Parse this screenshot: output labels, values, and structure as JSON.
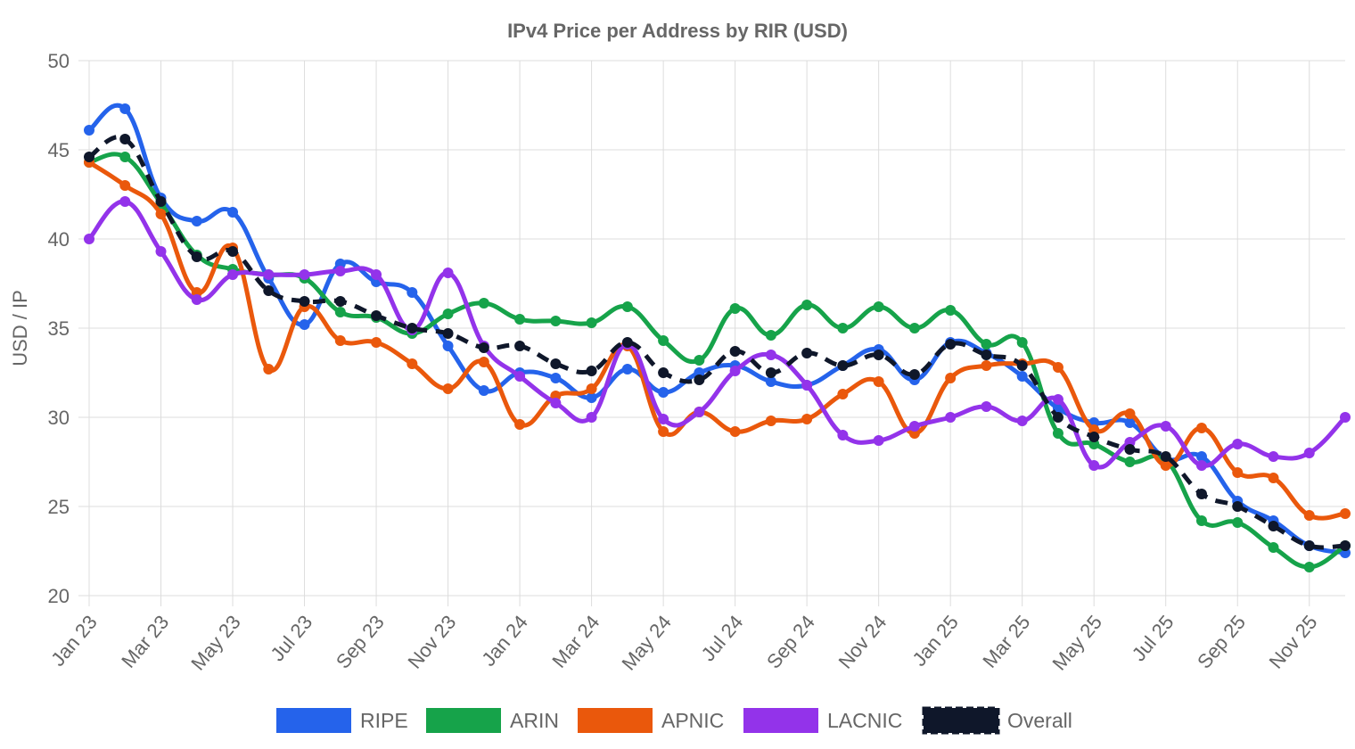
{
  "chart_data": {
    "type": "line",
    "title": "IPv4 Price per Address by RIR (USD)",
    "xlabel": "",
    "ylabel": "USD / IP",
    "ylim": [
      20,
      50
    ],
    "yticks": [
      20,
      25,
      30,
      35,
      40,
      45,
      50
    ],
    "x": [
      "2023-01",
      "2023-02",
      "2023-03",
      "2023-04",
      "2023-05",
      "2023-06",
      "2023-07",
      "2023-08",
      "2023-09",
      "2023-10",
      "2023-11",
      "2023-12",
      "2024-01",
      "2024-02",
      "2024-03",
      "2024-04",
      "2024-05",
      "2024-06",
      "2024-07",
      "2024-08",
      "2024-09",
      "2024-10",
      "2024-11",
      "2024-12",
      "2025-01",
      "2025-02",
      "2025-03",
      "2025-04",
      "2025-05",
      "2025-06",
      "2025-07",
      "2025-08",
      "2025-09",
      "2025-10",
      "2025-11",
      "2025-12"
    ],
    "x_tick_labels": [
      "Jan 23",
      "Mar 23",
      "May 23",
      "Jul 23",
      "Sep 23",
      "Nov 23",
      "Jan 24",
      "Mar 24",
      "May 24",
      "Jul 24",
      "Sep 24",
      "Nov 24",
      "Jan 25",
      "Mar 25",
      "May 25",
      "Jul 25",
      "Sep 25",
      "Nov 25"
    ],
    "grid": true,
    "legend_position": "bottom",
    "series": [
      {
        "name": "RIPE",
        "color": "#2563eb",
        "dashed": false,
        "values": [
          46.1,
          47.3,
          42.3,
          41.0,
          41.5,
          37.8,
          35.2,
          38.6,
          37.6,
          37.0,
          34.0,
          31.5,
          32.5,
          32.2,
          31.1,
          32.7,
          31.4,
          32.5,
          32.9,
          32.0,
          31.8,
          32.9,
          33.8,
          32.1,
          34.2,
          33.6,
          32.3,
          30.5,
          29.7,
          29.7,
          27.7,
          27.8,
          25.3,
          24.2,
          22.8,
          22.4
        ]
      },
      {
        "name": "ARIN",
        "color": "#16a34a",
        "dashed": false,
        "values": [
          44.3,
          44.6,
          42.0,
          39.1,
          38.3,
          38.0,
          37.8,
          35.9,
          35.6,
          34.7,
          35.8,
          36.4,
          35.5,
          35.4,
          35.3,
          36.2,
          34.3,
          33.2,
          36.1,
          34.6,
          36.3,
          35.0,
          36.2,
          35.0,
          36.0,
          34.1,
          34.2,
          29.1,
          28.5,
          27.5,
          27.6,
          24.2,
          24.1,
          22.7,
          21.6,
          22.8
        ]
      },
      {
        "name": "APNIC",
        "color": "#ea580c",
        "dashed": false,
        "values": [
          44.3,
          43.0,
          41.4,
          37.0,
          39.5,
          32.7,
          36.2,
          34.3,
          34.2,
          33.0,
          31.6,
          33.1,
          29.6,
          31.2,
          31.6,
          34.0,
          29.2,
          30.3,
          29.2,
          29.8,
          29.9,
          31.3,
          32.0,
          29.1,
          32.2,
          32.9,
          33.0,
          32.8,
          29.3,
          30.2,
          27.3,
          29.4,
          26.9,
          26.6,
          24.5,
          24.6
        ]
      },
      {
        "name": "LACNIC",
        "color": "#9333ea",
        "dashed": false,
        "values": [
          40.0,
          42.1,
          39.3,
          36.6,
          38.0,
          38.0,
          38.0,
          38.2,
          38.0,
          34.9,
          38.1,
          34.0,
          32.3,
          30.8,
          30.0,
          34.1,
          29.9,
          30.3,
          32.6,
          33.5,
          31.8,
          29.0,
          28.7,
          29.5,
          30.0,
          30.6,
          29.8,
          31.0,
          27.3,
          28.6,
          29.5,
          27.3,
          28.5,
          27.8,
          28.0,
          30.0
        ]
      },
      {
        "name": "Overall",
        "color": "#0f172a",
        "dashed": true,
        "values": [
          44.6,
          45.6,
          42.1,
          39.0,
          39.3,
          37.1,
          36.5,
          36.5,
          35.7,
          35.0,
          34.7,
          33.9,
          34.0,
          33.0,
          32.6,
          34.2,
          32.5,
          32.1,
          33.7,
          32.5,
          33.6,
          32.9,
          33.5,
          32.4,
          34.1,
          33.5,
          32.9,
          30.0,
          28.9,
          28.2,
          27.8,
          25.7,
          25.0,
          23.9,
          22.8,
          22.8
        ]
      }
    ]
  }
}
